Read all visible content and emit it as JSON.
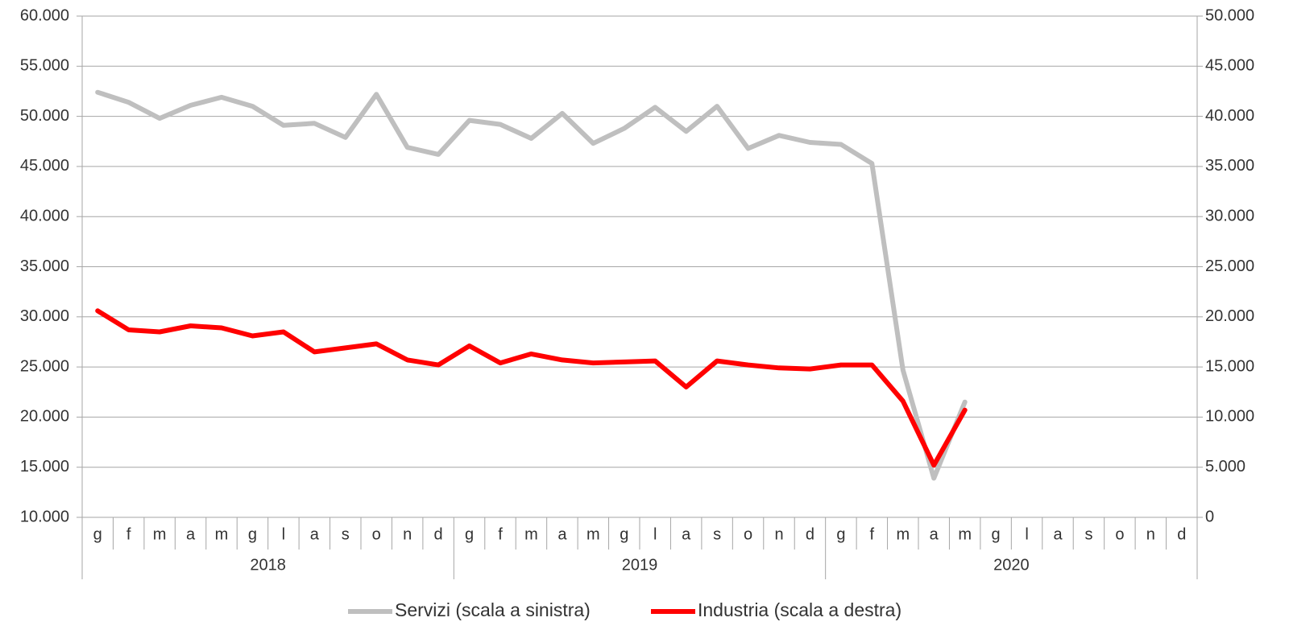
{
  "chart_data": {
    "type": "line",
    "categories": [
      "g",
      "f",
      "m",
      "a",
      "m",
      "g",
      "l",
      "a",
      "s",
      "o",
      "n",
      "d",
      "g",
      "f",
      "m",
      "a",
      "m",
      "g",
      "l",
      "a",
      "s",
      "o",
      "n",
      "d",
      "g",
      "f",
      "m",
      "a",
      "m",
      "g",
      "l",
      "a",
      "s",
      "o",
      "n",
      "d"
    ],
    "years": [
      "2018",
      "2019",
      "2020"
    ],
    "series": [
      {
        "name": "Servizi (scala a sinistra)",
        "color": "#bfbfbf",
        "axis": "y",
        "values": [
          52400,
          51400,
          49800,
          51100,
          51900,
          51000,
          49100,
          49300,
          47900,
          52200,
          46900,
          46200,
          49600,
          49200,
          47800,
          50300,
          47300,
          48800,
          50900,
          48500,
          51000,
          46800,
          48100,
          47400,
          47200,
          45300,
          24700,
          13900,
          21500,
          null,
          null,
          null,
          null,
          null,
          null,
          null
        ]
      },
      {
        "name": "Industria (scala a destra)",
        "color": "#ff0000",
        "axis": "y2",
        "values": [
          20600,
          18700,
          18500,
          19100,
          18900,
          18100,
          18500,
          16500,
          16900,
          17300,
          15700,
          15200,
          17100,
          15400,
          16300,
          15700,
          15400,
          15500,
          15600,
          13000,
          15600,
          15200,
          14900,
          14800,
          15200,
          15200,
          11600,
          5200,
          10700,
          null,
          null,
          null,
          null,
          null,
          null,
          null
        ]
      }
    ],
    "ylim": [
      10000,
      60000
    ],
    "yticks": [
      {
        "value": 10000,
        "label": "10.000"
      },
      {
        "value": 15000,
        "label": "15.000"
      },
      {
        "value": 20000,
        "label": "20.000"
      },
      {
        "value": 25000,
        "label": "25.000"
      },
      {
        "value": 30000,
        "label": "30.000"
      },
      {
        "value": 35000,
        "label": "35.000"
      },
      {
        "value": 40000,
        "label": "40.000"
      },
      {
        "value": 45000,
        "label": "45.000"
      },
      {
        "value": 50000,
        "label": "50.000"
      },
      {
        "value": 55000,
        "label": "55.000"
      },
      {
        "value": 60000,
        "label": "60.000"
      }
    ],
    "y2lim": [
      0,
      50000
    ],
    "y2ticks": [
      0,
      {
        "value": 5000,
        "label": "5.000"
      },
      {
        "value": 10000,
        "label": "10.000"
      },
      {
        "value": 15000,
        "label": "15.000"
      },
      {
        "value": 20000,
        "label": "20.000"
      },
      {
        "value": 25000,
        "label": "25.000"
      },
      {
        "value": 30000,
        "label": "30.000"
      },
      {
        "value": 35000,
        "label": "35.000"
      },
      {
        "value": 40000,
        "label": "40.000"
      },
      {
        "value": 45000,
        "label": "45.000"
      },
      {
        "value": 50000,
        "label": "50.000"
      }
    ],
    "grid": true,
    "legend": "bottom"
  }
}
